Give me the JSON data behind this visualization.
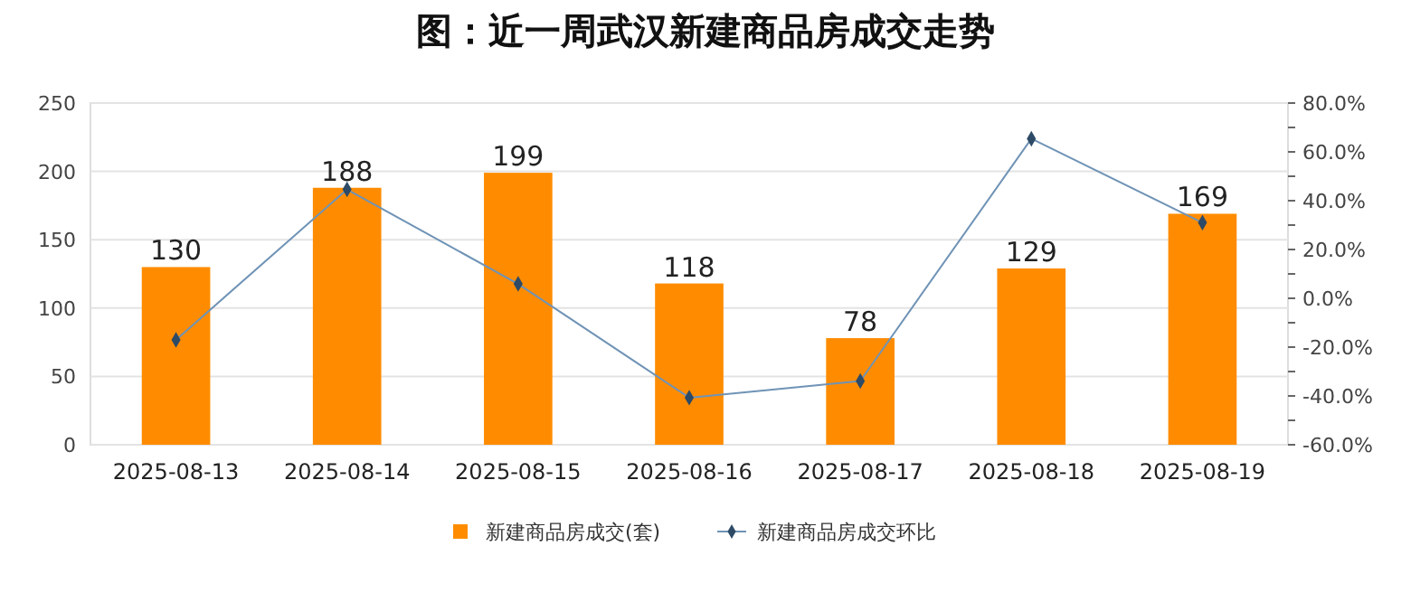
{
  "chart_data": {
    "type": "bar",
    "title": "图：近一周武汉新建商品房成交走势",
    "categories": [
      "2025-08-13",
      "2025-08-14",
      "2025-08-15",
      "2025-08-16",
      "2025-08-17",
      "2025-08-18",
      "2025-08-19"
    ],
    "series": [
      {
        "name": "新建商品房成交(套)",
        "color": "#ff8c00",
        "values": [
          130,
          188,
          199,
          118,
          78,
          129,
          169
        ],
        "value_labels": [
          "130",
          "188",
          "199",
          "118",
          "78",
          "129",
          "169"
        ]
      },
      {
        "name": "新建商品房成交环比",
        "type": "line",
        "axis": "y2",
        "color": "#6f93b6",
        "marker": "diamond",
        "values": [
          -17,
          44.6,
          5.9,
          -40.7,
          -33.9,
          65.4,
          31.0
        ]
      }
    ],
    "ylim": [
      0,
      250
    ],
    "yticks": [
      0,
      50,
      100,
      150,
      200,
      250
    ],
    "y2lim": [
      -60,
      80
    ],
    "y2ticks": [
      {
        "value": -60,
        "label": "-60.0%"
      },
      {
        "value": -50,
        "label": null
      },
      {
        "value": -40,
        "label": "-40.0%"
      },
      {
        "value": -30,
        "label": null
      },
      {
        "value": -20,
        "label": "-20.0%"
      },
      {
        "value": -10,
        "label": null
      },
      {
        "value": 0,
        "label": "0.0%"
      },
      {
        "value": 10,
        "label": null
      },
      {
        "value": 20,
        "label": "20.0%"
      },
      {
        "value": 30,
        "label": null
      },
      {
        "value": 40,
        "label": "40.0%"
      },
      {
        "value": 50,
        "label": null
      },
      {
        "value": 60,
        "label": "60.0%"
      },
      {
        "value": 70,
        "label": null
      },
      {
        "value": 80,
        "label": "80.0%"
      }
    ],
    "grid": "y",
    "legend": "bottom"
  }
}
